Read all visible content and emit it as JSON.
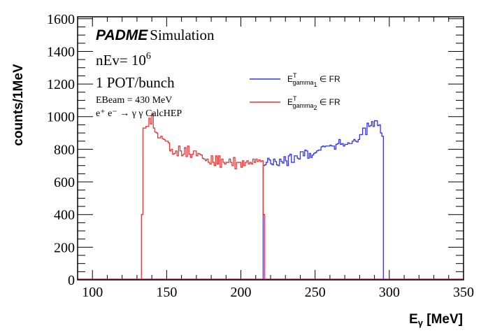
{
  "chart_data": {
    "type": "histogram",
    "title": "",
    "xlabel": "E",
    "xlabel_sub": "γ",
    "xlabel_unit": " [MeV]",
    "ylabel": "counts/1MeV",
    "xlim": [
      90,
      350
    ],
    "ylim": [
      0,
      1612
    ],
    "x_ticks": [
      100,
      150,
      200,
      250,
      300,
      350
    ],
    "y_ticks": [
      0,
      200,
      400,
      600,
      800,
      1000,
      1200,
      1400,
      1600
    ],
    "grid": false,
    "bin_width": 1,
    "series": [
      {
        "name": "E_gamma1^T ∈ FR",
        "color": "#3333ee",
        "x_start": 215,
        "values": [
          700,
          705,
          720,
          745,
          735,
          712,
          705,
          740,
          725,
          705,
          700,
          740,
          725,
          715,
          755,
          730,
          700,
          760,
          770,
          720,
          720,
          760,
          760,
          745,
          740,
          785,
          785,
          760,
          795,
          790,
          745,
          775,
          750,
          765,
          775,
          780,
          790,
          795,
          795,
          815,
          820,
          815,
          820,
          820,
          820,
          825,
          820,
          820,
          800,
          830,
          835,
          860,
          830,
          835,
          820,
          830,
          830,
          840,
          835,
          835,
          850,
          860,
          850,
          845,
          860,
          890,
          890,
          930,
          930,
          890,
          960,
          940,
          945,
          970,
          940,
          975,
          975,
          945,
          950,
          900,
          880
        ]
      },
      {
        "name": "E_gamma2^T ∈ FR",
        "color": "#ee3333",
        "x_start": 133,
        "values": [
          400,
          930,
          930,
          940,
          940,
          990,
          955,
          1020,
          930,
          905,
          900,
          870,
          870,
          880,
          865,
          860,
          850,
          850,
          840,
          790,
          800,
          770,
          775,
          790,
          760,
          820,
          790,
          760,
          770,
          810,
          755,
          820,
          770,
          750,
          770,
          790,
          790,
          760,
          775,
          770,
          765,
          745,
          740,
          730,
          740,
          720,
          710,
          760,
          720,
          700,
          760,
          710,
          760,
          690,
          740,
          720,
          710,
          720,
          720,
          740,
          720,
          700,
          750,
          680,
          720,
          720,
          720,
          690,
          730,
          700,
          720,
          730,
          710,
          720,
          710,
          740,
          720,
          740,
          725,
          735,
          725,
          730,
          400
        ]
      }
    ],
    "annotations": {
      "padme": "PADME",
      "simulation": "Simulation",
      "nev_prefix": "nEv= 10",
      "nev_exp": "6",
      "pot": "1 POT/bunch",
      "ebeam": "EBeam = 430 MeV",
      "process": "e⁺ e⁻ → γ γ CalcHEP"
    },
    "legend": {
      "placement": "top-center",
      "entries": [
        {
          "main": "E",
          "sup": "T",
          "sub": "gamma",
          "subsub": "1",
          "tail": " ∈ FR",
          "color": "#3333ee"
        },
        {
          "main": "E",
          "sup": "T",
          "sub": "gamma",
          "subsub": "2",
          "tail": " ∈ FR",
          "color": "#ee3333"
        }
      ]
    }
  }
}
